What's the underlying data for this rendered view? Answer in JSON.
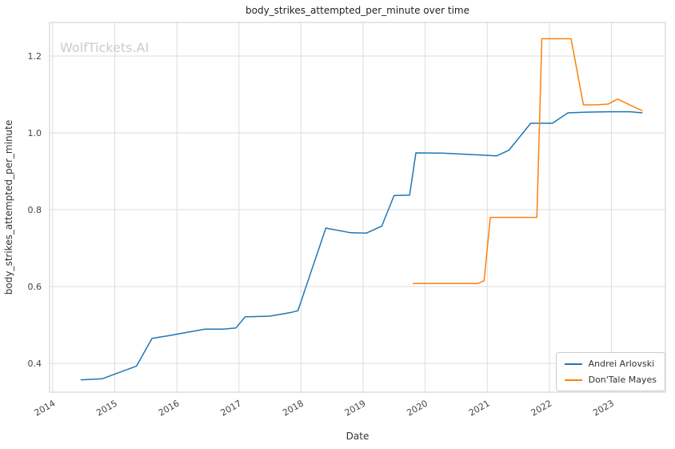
{
  "watermark": "WolfTickets.AI",
  "chart_data": {
    "type": "line",
    "title": "body_strikes_attempted_per_minute over time",
    "xlabel": "Date",
    "ylabel": "body_strikes_attempted_per_minute",
    "x_ticks": [
      2014,
      2015,
      2016,
      2017,
      2018,
      2019,
      2020,
      2021,
      2022,
      2023
    ],
    "y_ticks": [
      0.4,
      0.6,
      0.8,
      1.0,
      1.2
    ],
    "xlim": [
      2013.95,
      2023.87
    ],
    "ylim": [
      0.325,
      1.2875
    ],
    "grid": true,
    "legend_position": "lower right",
    "series": [
      {
        "name": "Andrei Arlovski",
        "color": "#1f77b4",
        "x": [
          2014.45,
          2014.8,
          2015.0,
          2015.35,
          2015.6,
          2015.9,
          2016.1,
          2016.45,
          2016.75,
          2016.95,
          2017.1,
          2017.5,
          2017.85,
          2017.95,
          2018.4,
          2018.8,
          2019.05,
          2019.3,
          2019.5,
          2019.75,
          2019.85,
          2020.3,
          2020.9,
          2021.15,
          2021.35,
          2021.7,
          2022.05,
          2022.3,
          2022.6,
          2023.0,
          2023.3,
          2023.5
        ],
        "y": [
          0.357,
          0.36,
          0.372,
          0.393,
          0.465,
          0.473,
          0.479,
          0.489,
          0.489,
          0.492,
          0.521,
          0.523,
          0.533,
          0.537,
          0.752,
          0.74,
          0.739,
          0.757,
          0.837,
          0.838,
          0.948,
          0.947,
          0.942,
          0.94,
          0.955,
          1.025,
          1.025,
          1.052,
          1.054,
          1.055,
          1.055,
          1.052
        ]
      },
      {
        "name": "Don'Tale Mayes",
        "color": "#ff7f0e",
        "x": [
          2019.8,
          2020.4,
          2020.85,
          2020.95,
          2021.05,
          2021.45,
          2021.8,
          2021.88,
          2022.05,
          2022.35,
          2022.55,
          2022.75,
          2022.95,
          2023.1,
          2023.5
        ],
        "y": [
          0.608,
          0.608,
          0.608,
          0.615,
          0.78,
          0.78,
          0.78,
          1.245,
          1.245,
          1.245,
          1.073,
          1.073,
          1.075,
          1.088,
          1.057
        ]
      }
    ]
  }
}
